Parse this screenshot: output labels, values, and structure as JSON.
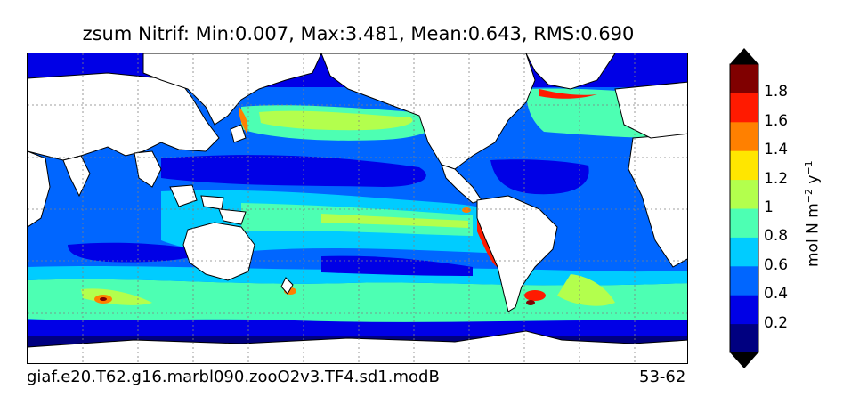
{
  "title": "zsum Nitrif: Min:0.007, Max:3.481, Mean:0.643, RMS:0.690",
  "footer": {
    "case_name": "giaf.e20.T62.g16.marbl090.zooO2v3.TF4.sd1.modB",
    "years": "53-62"
  },
  "colorbar": {
    "units_text": "mol N m",
    "units_sup1": "−2",
    "units_mid": " y",
    "units_sup2": "−1",
    "tick_labels": [
      "0.2",
      "0.4",
      "0.6",
      "0.8",
      "1",
      "1.2",
      "1.4",
      "1.6",
      "1.8"
    ],
    "colors": [
      "#000080",
      "#0000e6",
      "#0066ff",
      "#00ccff",
      "#4dffb3",
      "#b3ff4d",
      "#ffe600",
      "#ff8000",
      "#ff1a00",
      "#800000"
    ],
    "extend_low_color": "#000000",
    "extend_high_color": "#000000"
  },
  "colors": {
    "land": "#ffffff",
    "ocean_base": "#0066ff",
    "gridline": "#808080"
  }
}
